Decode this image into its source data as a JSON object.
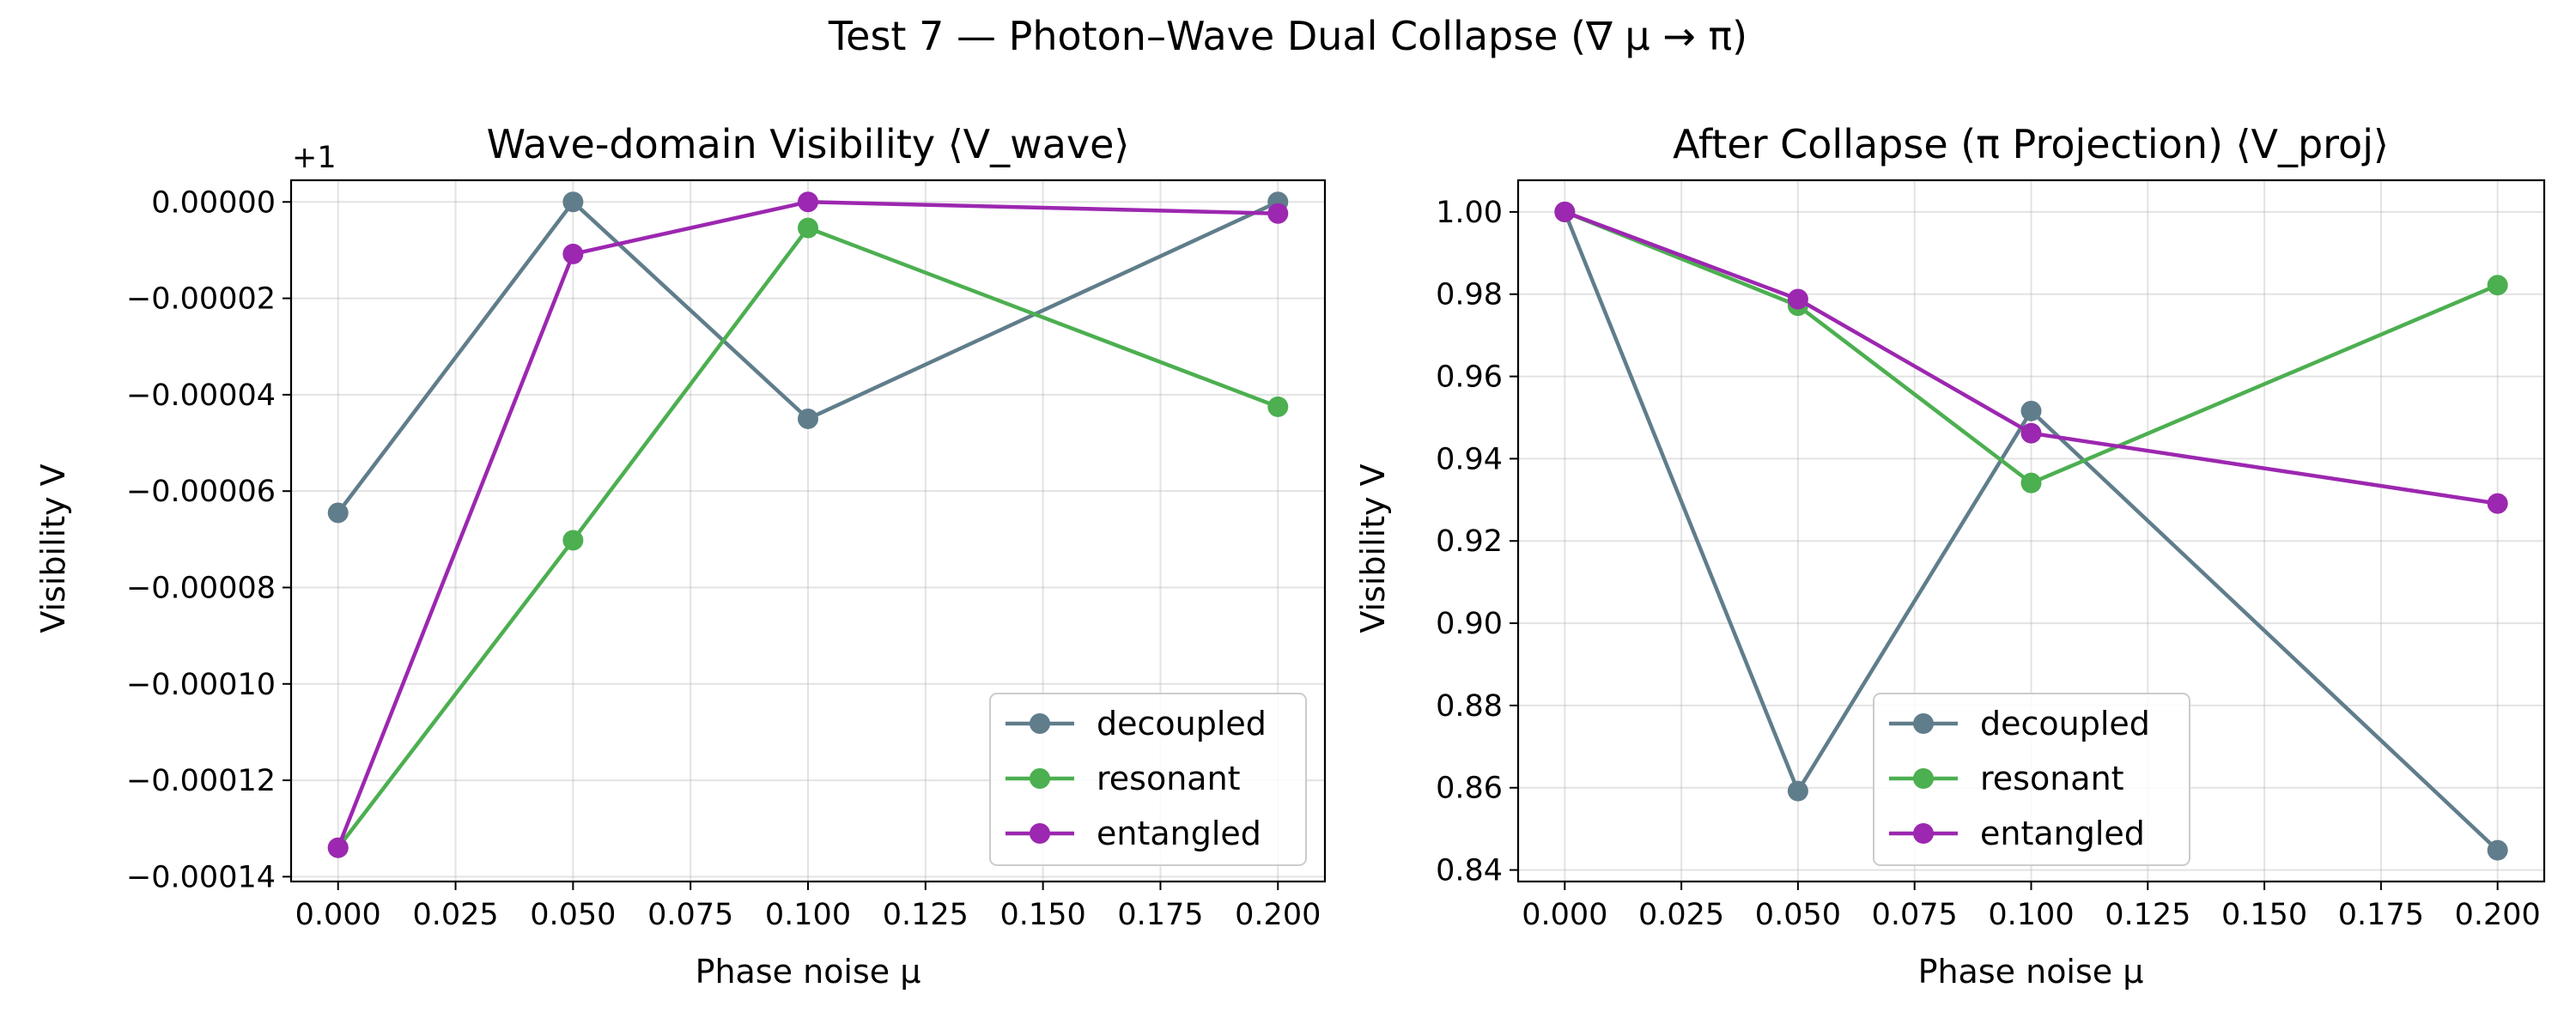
{
  "suptitle": "Test 7 — Photon–Wave Dual Collapse (∇ μ → π)",
  "colors": {
    "decoupled": "#607d8b",
    "resonant": "#4caf50",
    "entangled": "#9c27b0"
  },
  "chart_data": [
    {
      "type": "line",
      "title": "Wave-domain Visibility ⟨V_wave⟩",
      "xlabel": "Phase noise μ",
      "ylabel": "Visibility V",
      "offset_label": "+1",
      "x": [
        0.0,
        0.05,
        0.1,
        0.2
      ],
      "xlim": [
        -0.01,
        0.21
      ],
      "ylim": [
        -0.000141,
        4.5e-06
      ],
      "xticks": [
        0.0,
        0.025,
        0.05,
        0.075,
        0.1,
        0.125,
        0.15,
        0.175,
        0.2
      ],
      "xtick_labels": [
        "0.000",
        "0.025",
        "0.050",
        "0.075",
        "0.100",
        "0.125",
        "0.150",
        "0.175",
        "0.200"
      ],
      "yticks": [
        0.0,
        -2e-05,
        -4e-05,
        -6e-05,
        -8e-05,
        -0.0001,
        -0.00012,
        -0.00014
      ],
      "ytick_labels": [
        "0.00000",
        "−0.00002",
        "−0.00004",
        "−0.00006",
        "−0.00008",
        "−0.00010",
        "−0.00012",
        "−0.00014"
      ],
      "grid": true,
      "legend_position": "lower-right",
      "series": [
        {
          "name": "decoupled",
          "color": "#607d8b",
          "values": [
            -6.45e-05,
            0.0,
            -4.5e-05,
            0.0
          ]
        },
        {
          "name": "resonant",
          "color": "#4caf50",
          "values": [
            -0.000134,
            -7.02e-05,
            -5.4e-06,
            -4.25e-05
          ]
        },
        {
          "name": "entangled",
          "color": "#9c27b0",
          "values": [
            -0.000134,
            -1.08e-05,
            0.0,
            -2.4e-06
          ]
        }
      ]
    },
    {
      "type": "line",
      "title": "After Collapse (π Projection) ⟨V_proj⟩",
      "xlabel": "Phase noise μ",
      "ylabel": "Visibility V",
      "x": [
        0.0,
        0.05,
        0.1,
        0.2
      ],
      "xlim": [
        -0.01,
        0.21
      ],
      "ylim": [
        0.8372,
        1.0077
      ],
      "xticks": [
        0.0,
        0.025,
        0.05,
        0.075,
        0.1,
        0.125,
        0.15,
        0.175,
        0.2
      ],
      "xtick_labels": [
        "0.000",
        "0.025",
        "0.050",
        "0.075",
        "0.100",
        "0.125",
        "0.150",
        "0.175",
        "0.200"
      ],
      "yticks": [
        1.0,
        0.98,
        0.96,
        0.94,
        0.92,
        0.9,
        0.88,
        0.86,
        0.84
      ],
      "ytick_labels": [
        "1.00",
        "0.98",
        "0.96",
        "0.94",
        "0.92",
        "0.90",
        "0.88",
        "0.86",
        "0.84"
      ],
      "grid": true,
      "legend_position": "lower-center",
      "series": [
        {
          "name": "decoupled",
          "color": "#607d8b",
          "values": [
            1.0,
            0.8592,
            0.9516,
            0.8448
          ]
        },
        {
          "name": "resonant",
          "color": "#4caf50",
          "values": [
            1.0,
            0.9772,
            0.9341,
            0.9822
          ]
        },
        {
          "name": "entangled",
          "color": "#9c27b0",
          "values": [
            1.0,
            0.9788,
            0.9462,
            0.9291
          ]
        }
      ]
    }
  ]
}
